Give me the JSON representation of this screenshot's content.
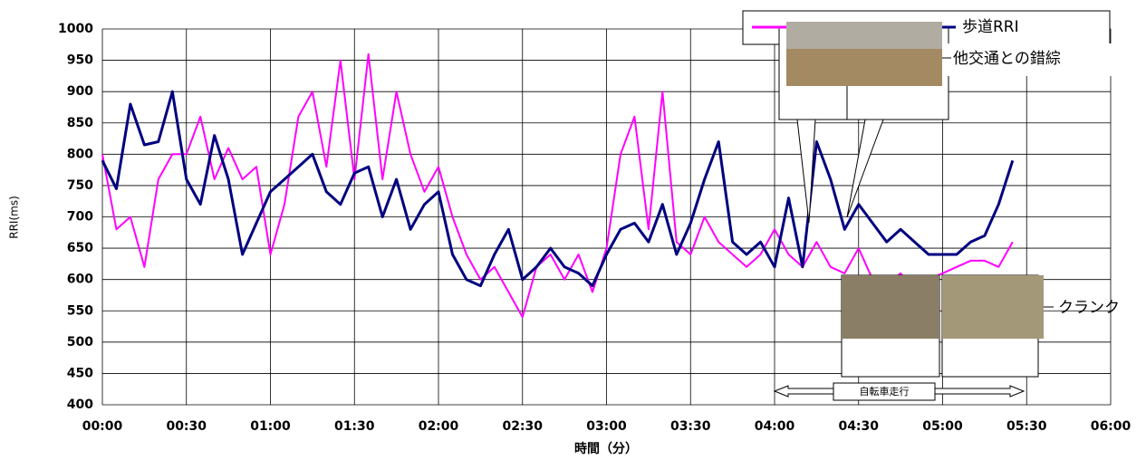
{
  "chart_data": {
    "type": "line",
    "y_label": "RRI(ms)",
    "x_label": "時間（分）",
    "x": [
      0,
      5,
      10,
      15,
      20,
      25,
      30,
      35,
      40,
      45,
      50,
      55,
      60,
      65,
      70,
      75,
      80,
      85,
      90,
      95,
      100,
      105,
      110,
      115,
      120,
      125,
      130,
      135,
      140,
      145,
      150,
      155,
      160,
      165,
      170,
      175,
      180,
      185,
      190,
      195,
      200,
      205,
      210,
      215,
      220,
      225,
      230,
      235,
      240,
      245,
      250,
      255,
      260,
      265,
      270,
      275,
      280,
      285,
      290,
      295,
      300,
      305,
      310,
      315,
      320,
      325
    ],
    "series": [
      {
        "color": "#ff00ff",
        "values": [
          800,
          680,
          700,
          620,
          760,
          800,
          800,
          860,
          760,
          810,
          760,
          780,
          640,
          720,
          860,
          900,
          780,
          950,
          760,
          960,
          760,
          900,
          800,
          740,
          780,
          700,
          640,
          600,
          620,
          580,
          540,
          620,
          640,
          600,
          640,
          580,
          650,
          800,
          860,
          680,
          900,
          660,
          640,
          700,
          660,
          640,
          620,
          640,
          680,
          640,
          620,
          660,
          620,
          610,
          650,
          600,
          590,
          610,
          580,
          600,
          610,
          620,
          630,
          630,
          620,
          660
        ]
      },
      {
        "name": "歩道RRI",
        "color": "#000080",
        "values": [
          790,
          745,
          880,
          815,
          820,
          900,
          760,
          720,
          830,
          760,
          640,
          690,
          740,
          760,
          780,
          800,
          740,
          720,
          770,
          780,
          700,
          760,
          680,
          720,
          740,
          640,
          600,
          590,
          640,
          680,
          600,
          620,
          650,
          620,
          610,
          590,
          640,
          680,
          690,
          660,
          720,
          640,
          690,
          760,
          820,
          660,
          640,
          660,
          620,
          730,
          620,
          820,
          760,
          680,
          720,
          690,
          660,
          680,
          660,
          640,
          640,
          640,
          660,
          670,
          720,
          790
        ]
      }
    ],
    "xlim": [
      0,
      360
    ],
    "xticks": [
      {
        "value": 0,
        "label": "00:00"
      },
      {
        "value": 30,
        "label": "00:30"
      },
      {
        "value": 60,
        "label": "01:00"
      },
      {
        "value": 90,
        "label": "01:30"
      },
      {
        "value": 120,
        "label": "02:00"
      },
      {
        "value": 150,
        "label": "02:30"
      },
      {
        "value": 180,
        "label": "03:00"
      },
      {
        "value": 210,
        "label": "03:30"
      },
      {
        "value": 240,
        "label": "04:00"
      },
      {
        "value": 270,
        "label": "04:30"
      },
      {
        "value": 300,
        "label": "05:00"
      },
      {
        "value": 330,
        "label": "05:30"
      },
      {
        "value": 360,
        "label": "06:00"
      }
    ],
    "ylim": [
      400,
      1000
    ],
    "yticks": [
      400,
      450,
      500,
      550,
      600,
      650,
      700,
      750,
      800,
      850,
      900,
      950,
      1000
    ],
    "grid": true,
    "annotations": [
      "他交通との錯綜",
      "クランク",
      "自転車走行"
    ]
  }
}
